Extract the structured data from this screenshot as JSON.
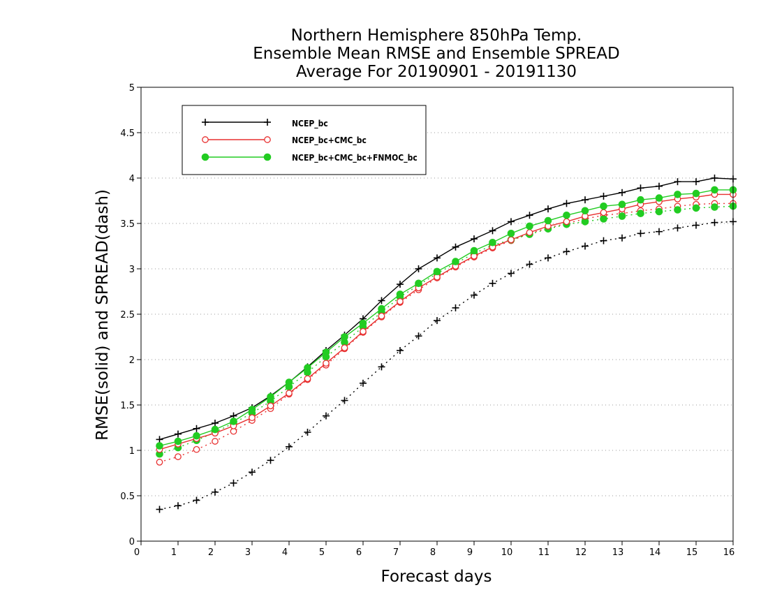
{
  "chart_data": {
    "type": "line",
    "title": [
      "Northern Hemisphere 850hPa Temp.",
      "Ensemble Mean RMSE and Ensemble SPREAD",
      "Average For 20190901 - 20191130"
    ],
    "xlabel": "Forecast days",
    "ylabel": "RMSE(solid) and SPREAD(dash)",
    "xlim": [
      0,
      16
    ],
    "ylim": [
      0,
      5
    ],
    "xticks": [
      "0",
      "1",
      "2",
      "3",
      "4",
      "5",
      "6",
      "7",
      "8",
      "9",
      "10",
      "11",
      "12",
      "13",
      "14",
      "15",
      "16"
    ],
    "yticks": [
      "0",
      "0.5",
      "1",
      "1.5",
      "2",
      "2.5",
      "3",
      "3.5",
      "4",
      "4.5",
      "5"
    ],
    "grid": "horizontal-dotted",
    "legend_position": "top-left",
    "x": [
      0.5,
      1,
      1.5,
      2,
      2.5,
      3,
      3.5,
      4,
      4.5,
      5,
      5.5,
      6,
      6.5,
      7,
      7.5,
      8,
      8.5,
      9,
      9.5,
      10,
      10.5,
      11,
      11.5,
      12,
      12.5,
      13,
      13.5,
      14,
      14.5,
      15,
      15.5,
      16
    ],
    "series": [
      {
        "name": "NCEP_bc",
        "color": "#000000",
        "marker": "plus",
        "rmse": [
          1.12,
          1.18,
          1.24,
          1.3,
          1.38,
          1.47,
          1.6,
          1.75,
          1.92,
          2.1,
          2.27,
          2.45,
          2.65,
          2.83,
          3.0,
          3.12,
          3.24,
          3.33,
          3.42,
          3.52,
          3.59,
          3.66,
          3.72,
          3.76,
          3.8,
          3.84,
          3.89,
          3.91,
          3.96,
          3.96,
          4.0,
          3.99
        ],
        "spread": [
          0.35,
          0.39,
          0.45,
          0.54,
          0.64,
          0.76,
          0.89,
          1.04,
          1.2,
          1.38,
          1.55,
          1.74,
          1.92,
          2.1,
          2.26,
          2.43,
          2.57,
          2.71,
          2.84,
          2.95,
          3.05,
          3.12,
          3.19,
          3.25,
          3.31,
          3.34,
          3.39,
          3.41,
          3.45,
          3.48,
          3.51,
          3.52
        ]
      },
      {
        "name": "NCEP_bc+CMC_bc",
        "color": "#e83030",
        "marker": "open-circle",
        "rmse": [
          1.01,
          1.07,
          1.13,
          1.19,
          1.27,
          1.36,
          1.49,
          1.63,
          1.79,
          1.96,
          2.13,
          2.31,
          2.48,
          2.64,
          2.79,
          2.91,
          3.03,
          3.14,
          3.24,
          3.32,
          3.4,
          3.47,
          3.52,
          3.58,
          3.62,
          3.66,
          3.71,
          3.74,
          3.77,
          3.79,
          3.82,
          3.82
        ],
        "spread": [
          0.87,
          0.93,
          1.01,
          1.1,
          1.21,
          1.33,
          1.46,
          1.62,
          1.78,
          1.94,
          2.12,
          2.3,
          2.47,
          2.63,
          2.77,
          2.9,
          3.02,
          3.13,
          3.23,
          3.31,
          3.39,
          3.45,
          3.5,
          3.55,
          3.59,
          3.61,
          3.64,
          3.66,
          3.69,
          3.71,
          3.72,
          3.72
        ]
      },
      {
        "name": "NCEP_bc+CMC_bc+FNMOC_bc",
        "color": "#22cc22",
        "marker": "filled-circle",
        "rmse": [
          1.05,
          1.1,
          1.16,
          1.23,
          1.32,
          1.45,
          1.59,
          1.75,
          1.91,
          2.08,
          2.25,
          2.4,
          2.56,
          2.72,
          2.84,
          2.97,
          3.08,
          3.2,
          3.29,
          3.39,
          3.47,
          3.53,
          3.59,
          3.64,
          3.69,
          3.71,
          3.76,
          3.78,
          3.82,
          3.83,
          3.87,
          3.87
        ],
        "spread": [
          0.96,
          1.03,
          1.11,
          1.2,
          1.3,
          1.41,
          1.54,
          1.7,
          1.86,
          2.03,
          2.19,
          2.36,
          2.52,
          2.69,
          2.82,
          2.95,
          3.06,
          3.17,
          3.26,
          3.32,
          3.38,
          3.44,
          3.49,
          3.52,
          3.55,
          3.58,
          3.61,
          3.63,
          3.65,
          3.67,
          3.68,
          3.69
        ]
      }
    ]
  }
}
